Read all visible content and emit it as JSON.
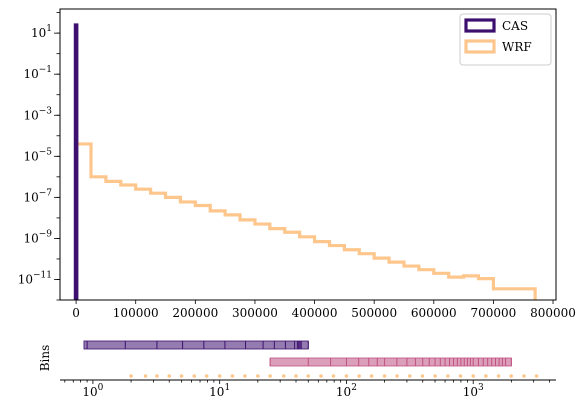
{
  "chart_data": [
    {
      "type": "histogram",
      "title": "",
      "xlabel": "",
      "ylabel": "",
      "yscale": "log",
      "xlim": [
        -27000,
        805000
      ],
      "ylim": [
        1e-12,
        150
      ],
      "grid": false,
      "legend_position": "top-right",
      "x_tick_labels": [
        "0",
        "100000",
        "200000",
        "300000",
        "400000",
        "500000",
        "600000",
        "700000",
        "800000"
      ],
      "x_ticks": [
        0,
        100000,
        200000,
        300000,
        400000,
        500000,
        600000,
        700000,
        800000
      ],
      "y_tick_labels": [
        {
          "base": "10",
          "exp": "1",
          "value": 10
        },
        {
          "base": "10",
          "exp": "−1",
          "value": 0.1
        },
        {
          "base": "10",
          "exp": "−3",
          "value": 0.001
        },
        {
          "base": "10",
          "exp": "−5",
          "value": 1e-05
        },
        {
          "base": "10",
          "exp": "−7",
          "value": 1e-07
        },
        {
          "base": "10",
          "exp": "−9",
          "value": 1e-09
        },
        {
          "base": "10",
          "exp": "−11",
          "value": 1e-11
        }
      ],
      "series": [
        {
          "name": "CAS",
          "color": "#3d1070",
          "edges": [
            -1200,
            1200
          ],
          "values": [
            25
          ]
        },
        {
          "name": "WRF",
          "color": "#fdc68c",
          "edges": [
            0,
            25000,
            50000,
            75000,
            100000,
            125000,
            150000,
            175000,
            200000,
            225000,
            250000,
            275000,
            300000,
            325000,
            350000,
            375000,
            400000,
            425000,
            450000,
            475000,
            500000,
            525000,
            550000,
            575000,
            600000,
            625000,
            650000,
            675000,
            700000,
            725000,
            770000
          ],
          "values": [
            4e-05,
            1e-06,
            6e-07,
            4e-07,
            2.5e-07,
            1.6e-07,
            1e-07,
            6e-08,
            4e-08,
            2.2e-08,
            1.4e-08,
            8e-09,
            5e-09,
            3e-09,
            2e-09,
            1.2e-09,
            7e-10,
            4.5e-10,
            2.8e-10,
            1.8e-10,
            1.1e-10,
            7e-11,
            4.5e-11,
            3e-11,
            2e-11,
            1.3e-11,
            1.5e-11,
            1.1e-11,
            3.5e-12,
            3.5e-12
          ]
        }
      ]
    },
    {
      "type": "bin-edges",
      "xscale": "log",
      "xlim": [
        0.55,
        4500
      ],
      "ylabel": "Bins",
      "x_tick_labels": [
        {
          "base": "10",
          "exp": "0",
          "value": 1
        },
        {
          "base": "10",
          "exp": "1",
          "value": 10
        },
        {
          "base": "10",
          "exp": "2",
          "value": 100
        },
        {
          "base": "10",
          "exp": "3",
          "value": 1000
        }
      ],
      "rows": [
        {
          "color": "#3d1070",
          "range": [
            0.85,
            50
          ],
          "edges": [
            0.9,
            1.8,
            3.2,
            5.1,
            7.5,
            11,
            16,
            22,
            27,
            33,
            39,
            41,
            42,
            43,
            44,
            50
          ]
        },
        {
          "color": "#c0507f",
          "range": [
            25,
            2000
          ],
          "edges": [
            25,
            50,
            75,
            100,
            125,
            150,
            175,
            200,
            250,
            300,
            350,
            400,
            450,
            500,
            550,
            600,
            650,
            700,
            750,
            800,
            850,
            900,
            950,
            1000,
            1100,
            1200,
            1300,
            1400,
            1500,
            1600,
            1700,
            1800,
            2000
          ]
        },
        {
          "color": "#fdc68c",
          "points": [
            2.0,
            2.6,
            3.2,
            4.0,
            5.0,
            6.3,
            7.9,
            10,
            12.6,
            15.8,
            20,
            25,
            32,
            40,
            50,
            63,
            79,
            100,
            126,
            158,
            200,
            251,
            316,
            398,
            501,
            631,
            794,
            1000,
            1259,
            1585,
            1995,
            2512,
            3162
          ]
        }
      ]
    }
  ]
}
